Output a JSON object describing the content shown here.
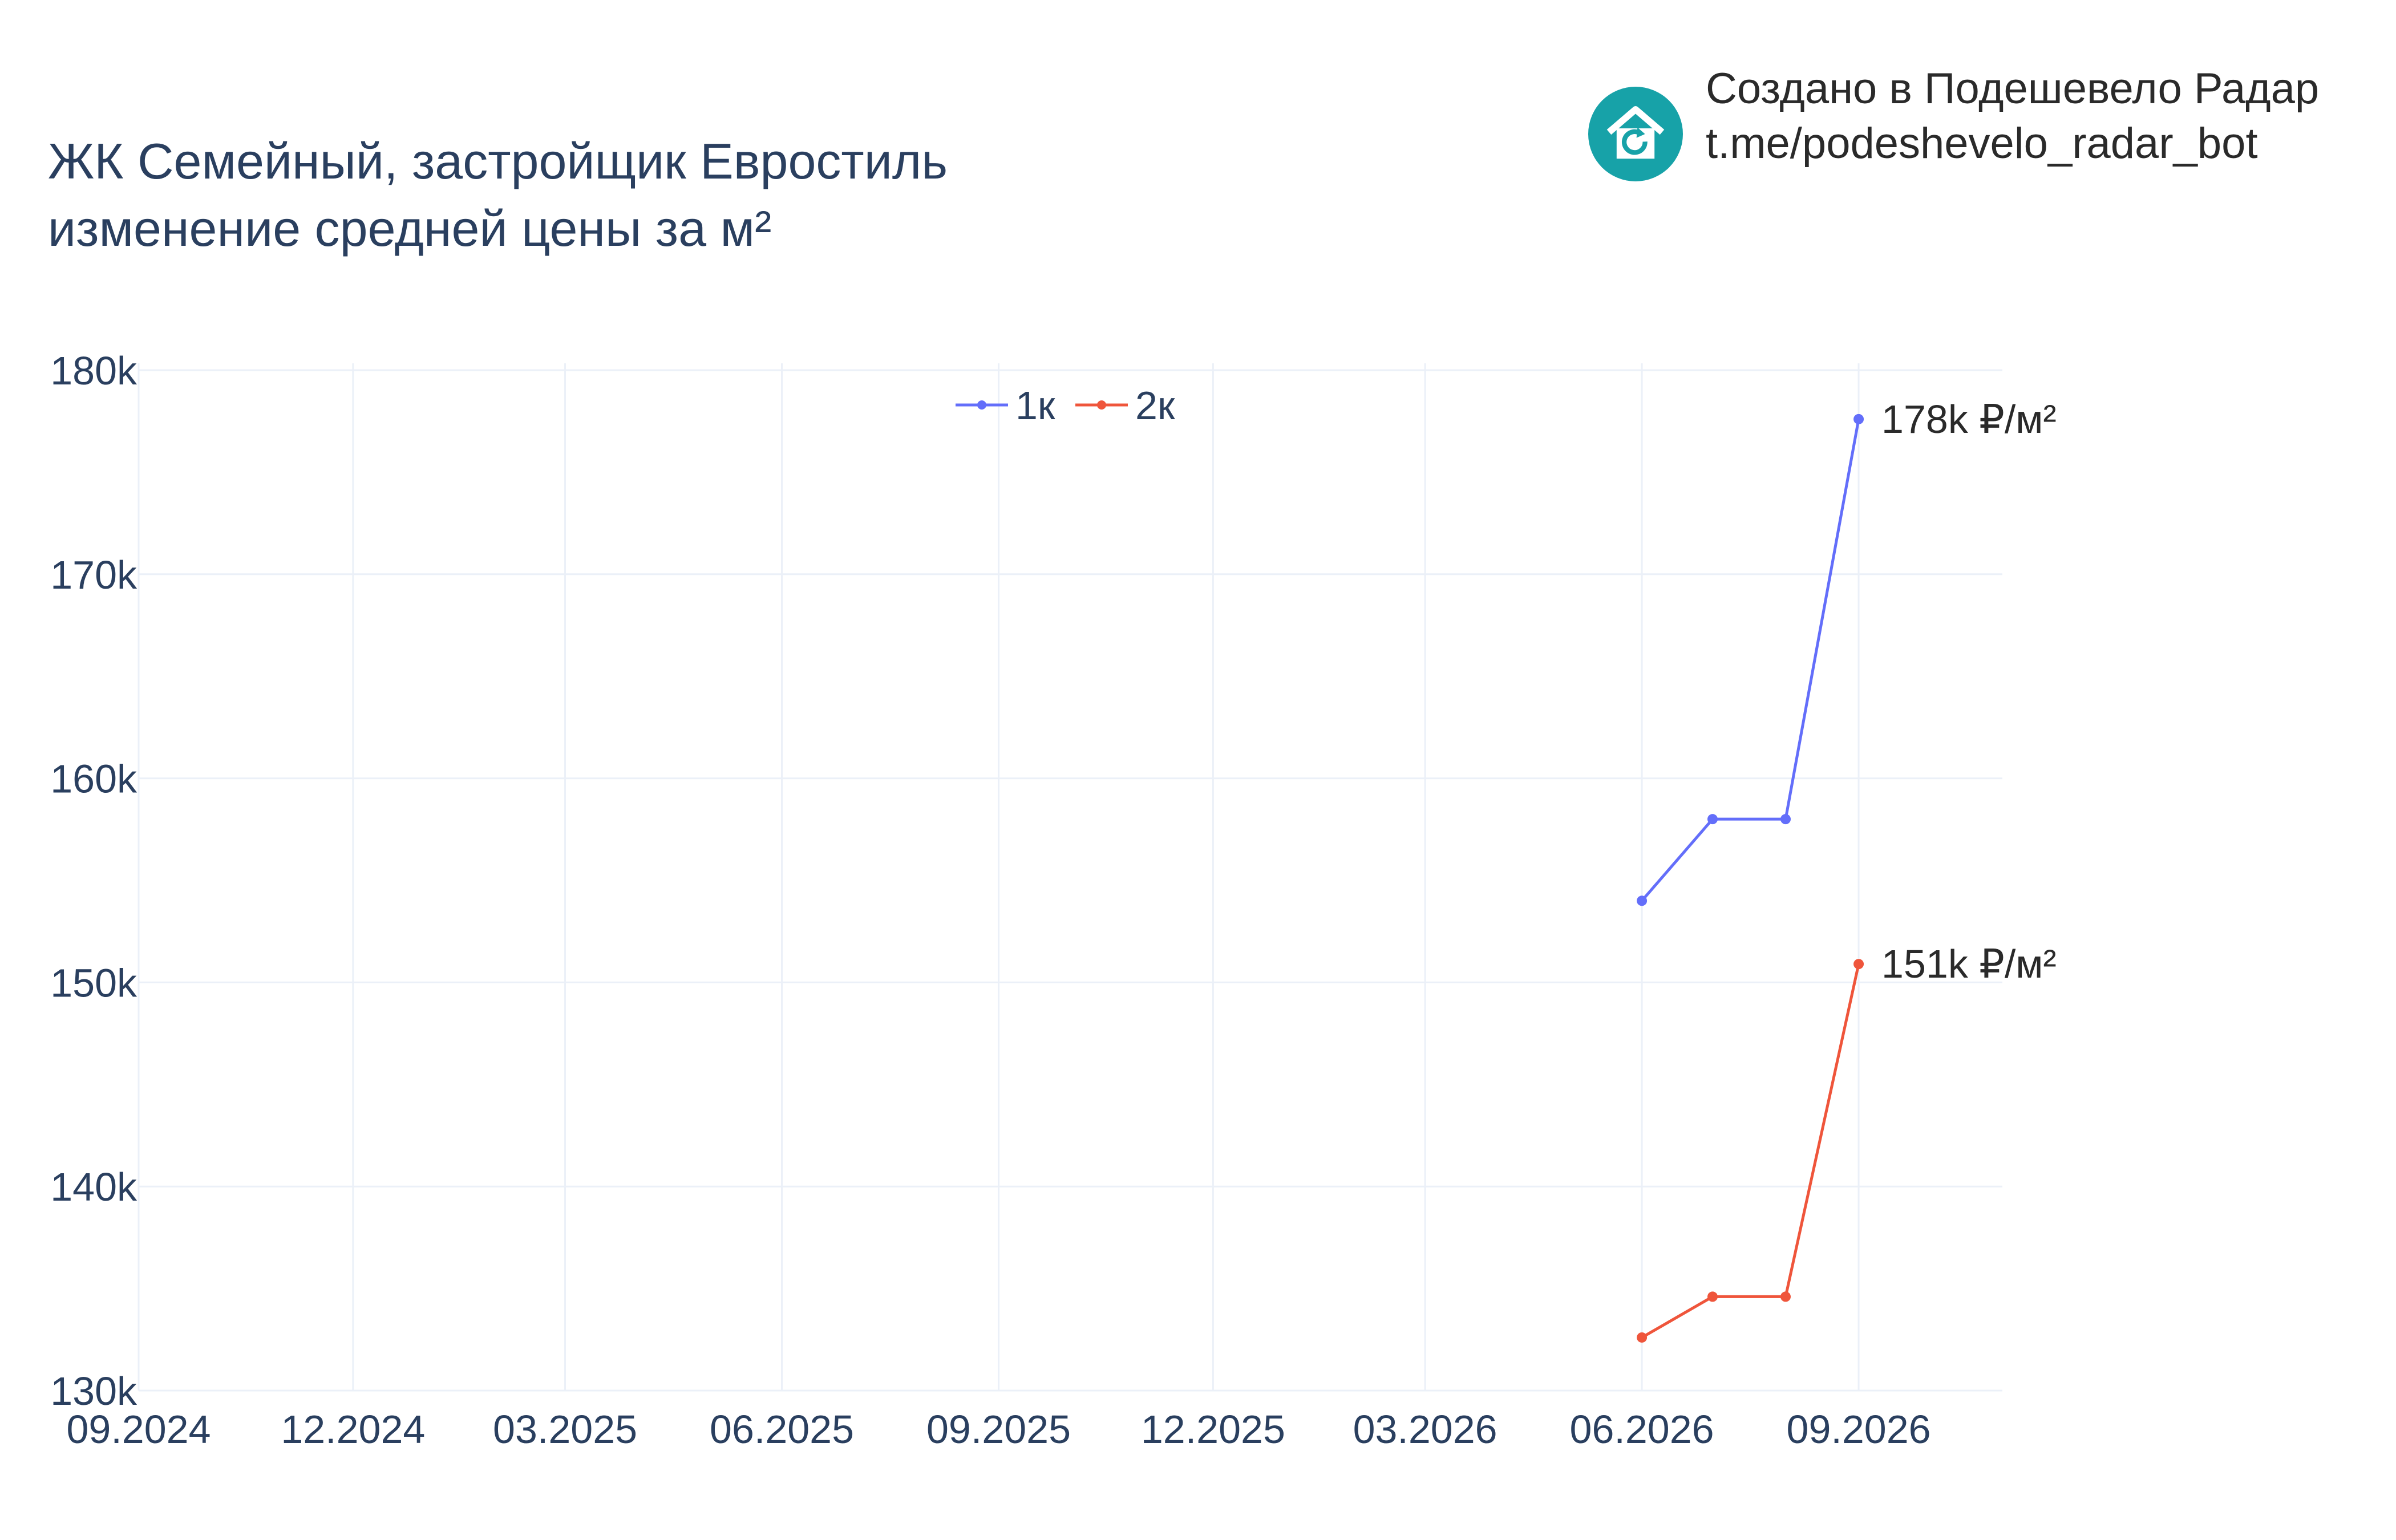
{
  "header": {
    "title_line1": "ЖК Семейный, застройщик Евростиль",
    "title_line2": "изменение средней цены за м²"
  },
  "credit": {
    "line1": "Создано в Подешевело Радар",
    "line2": "t.me/podeshevelo_radar_bot",
    "logo_icon": "house-refresh-icon",
    "logo_color": "#17a2a8"
  },
  "chart_data": {
    "type": "line",
    "x_ticks": [
      "09.2024",
      "12.2024",
      "03.2025",
      "06.2025",
      "09.2025",
      "12.2025",
      "03.2026",
      "06.2026",
      "09.2026"
    ],
    "y_ticks": [
      "130k",
      "140k",
      "150k",
      "160k",
      "170k",
      "180k"
    ],
    "ylim": [
      130000,
      180000
    ],
    "xlim": [
      "2024-09-01",
      "2026-11-01"
    ],
    "grid": true,
    "legend_position": "top-center",
    "series": [
      {
        "name": "1к",
        "color": "#636efa",
        "points": [
          {
            "x": "2026-06-01",
            "y": 154000
          },
          {
            "x": "2026-07-01",
            "y": 158000
          },
          {
            "x": "2026-08-01",
            "y": 158000
          },
          {
            "x": "2026-09-01",
            "y": 177600
          }
        ],
        "end_label": "178k ₽/м²"
      },
      {
        "name": "2к",
        "color": "#ef553b",
        "points": [
          {
            "x": "2026-06-01",
            "y": 132600
          },
          {
            "x": "2026-07-01",
            "y": 134600
          },
          {
            "x": "2026-08-01",
            "y": 134600
          },
          {
            "x": "2026-09-01",
            "y": 150900
          }
        ],
        "end_label": "151k ₽/м²"
      }
    ]
  }
}
